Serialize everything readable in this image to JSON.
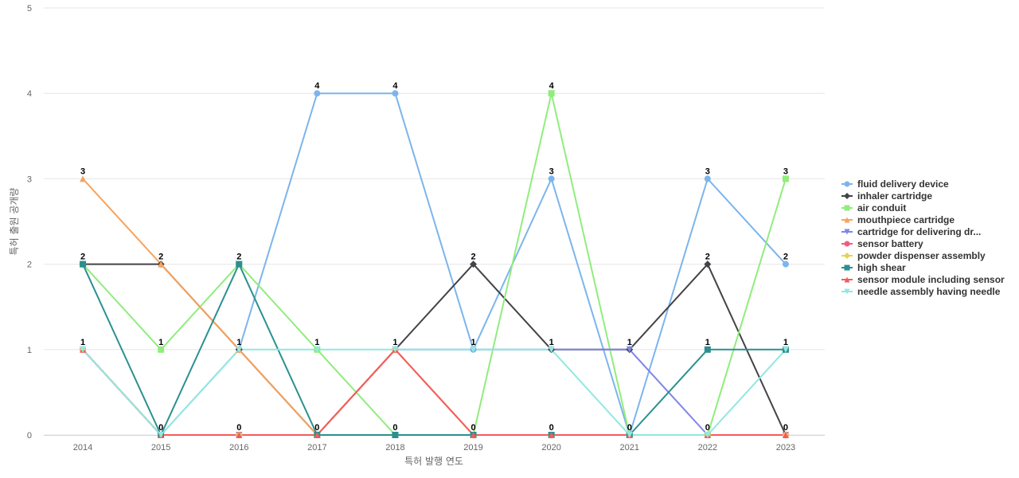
{
  "chart_data": {
    "type": "line",
    "title": "",
    "xlabel": "특허 발행 연도",
    "ylabel": "특허 출원 공개량",
    "ylim": [
      0,
      5
    ],
    "yticks": [
      "0",
      "1",
      "2",
      "3",
      "4",
      "5"
    ],
    "categories": [
      "2014",
      "2015",
      "2016",
      "2017",
      "2018",
      "2019",
      "2020",
      "2021",
      "2022",
      "2023"
    ],
    "grid": "horizontal",
    "legend_position": "right",
    "series": [
      {
        "name": "fluid delivery device",
        "legend_label": "fluid delivery device",
        "color": "#7cb5ec",
        "marker": "circle",
        "values": [
          1,
          0,
          1,
          4,
          4,
          1,
          3,
          0,
          3,
          2
        ]
      },
      {
        "name": "inhaler cartridge",
        "legend_label": "inhaler cartridge",
        "color": "#434348",
        "marker": "diamond",
        "values": [
          2,
          2,
          1,
          0,
          1,
          2,
          1,
          1,
          2,
          0
        ]
      },
      {
        "name": "air conduit",
        "legend_label": "air conduit",
        "color": "#90ed7d",
        "marker": "square",
        "values": [
          2,
          1,
          2,
          1,
          0,
          0,
          4,
          0,
          0,
          3
        ]
      },
      {
        "name": "mouthpiece cartridge",
        "legend_label": "mouthpiece cartridge",
        "color": "#f7a35c",
        "marker": "triangle",
        "values": [
          3,
          2,
          1,
          0,
          0,
          0,
          0,
          0,
          0,
          0
        ]
      },
      {
        "name": "cartridge for delivering drug",
        "legend_label": "cartridge for delivering dr...",
        "color": "#8085e9",
        "marker": "triangle-down",
        "values": [
          1,
          0,
          0,
          0,
          1,
          1,
          1,
          1,
          0,
          0
        ]
      },
      {
        "name": "sensor battery",
        "legend_label": "sensor battery",
        "color": "#f15c80",
        "marker": "circle",
        "values": [
          1,
          0,
          0,
          0,
          1,
          0,
          0,
          0,
          0,
          0
        ]
      },
      {
        "name": "powder dispenser assembly",
        "legend_label": "powder dispenser assembly",
        "color": "#e4d354",
        "marker": "diamond",
        "values": [
          1,
          0,
          0,
          0,
          1,
          0,
          0,
          0,
          0,
          0
        ]
      },
      {
        "name": "high shear",
        "legend_label": "high shear",
        "color": "#2b908f",
        "marker": "square",
        "values": [
          2,
          0,
          2,
          0,
          0,
          0,
          0,
          0,
          1,
          1
        ]
      },
      {
        "name": "sensor module including sensor",
        "legend_label": "sensor module including sensor",
        "color": "#f45b5b",
        "marker": "triangle",
        "values": [
          1,
          0,
          0,
          0,
          1,
          0,
          0,
          0,
          0,
          0
        ]
      },
      {
        "name": "needle assembly having needle",
        "legend_label": "needle assembly having needle",
        "color": "#91e8e1",
        "marker": "triangle-down",
        "values": [
          1,
          0,
          1,
          1,
          1,
          1,
          1,
          0,
          0,
          1
        ]
      }
    ],
    "data_labels": [
      {
        "x": "2014",
        "value": 3
      },
      {
        "x": "2014",
        "value": 2
      },
      {
        "x": "2014",
        "value": 1
      },
      {
        "x": "2015",
        "value": 2
      },
      {
        "x": "2015",
        "value": 1
      },
      {
        "x": "2015",
        "value": 0
      },
      {
        "x": "2016",
        "value": 2
      },
      {
        "x": "2016",
        "value": 1
      },
      {
        "x": "2016",
        "value": 0
      },
      {
        "x": "2017",
        "value": 4
      },
      {
        "x": "2017",
        "value": 1
      },
      {
        "x": "2017",
        "value": 0
      },
      {
        "x": "2018",
        "value": 4
      },
      {
        "x": "2018",
        "value": 1
      },
      {
        "x": "2018",
        "value": 0
      },
      {
        "x": "2019",
        "value": 2
      },
      {
        "x": "2019",
        "value": 1
      },
      {
        "x": "2019",
        "value": 0
      },
      {
        "x": "2020",
        "value": 4
      },
      {
        "x": "2020",
        "value": 3
      },
      {
        "x": "2020",
        "value": 1
      },
      {
        "x": "2020",
        "value": 0
      },
      {
        "x": "2021",
        "value": 1
      },
      {
        "x": "2021",
        "value": 0
      },
      {
        "x": "2022",
        "value": 3
      },
      {
        "x": "2022",
        "value": 2
      },
      {
        "x": "2022",
        "value": 1
      },
      {
        "x": "2022",
        "value": 0
      },
      {
        "x": "2023",
        "value": 3
      },
      {
        "x": "2023",
        "value": 2
      },
      {
        "x": "2023",
        "value": 1
      },
      {
        "x": "2023",
        "value": 0
      }
    ]
  }
}
